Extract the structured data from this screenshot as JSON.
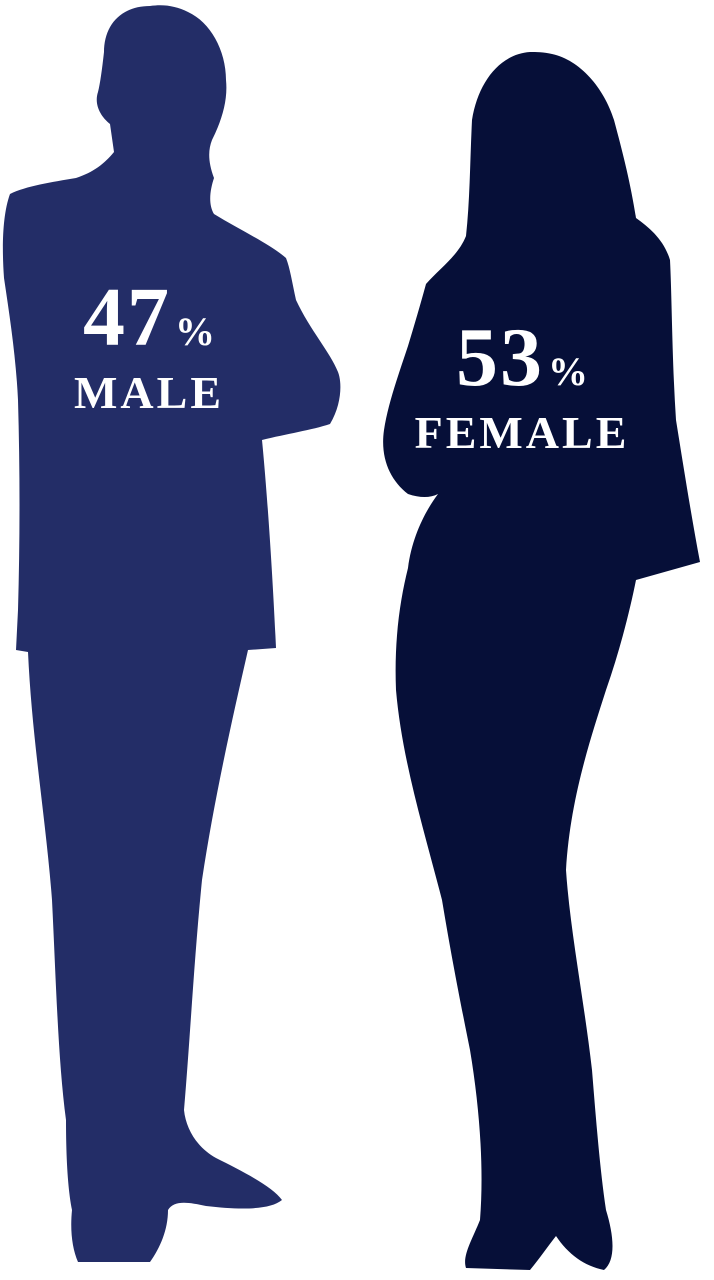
{
  "colors": {
    "background": "#ffffff",
    "male_figure": "#232d67",
    "female_figure": "#060f38",
    "text": "#ffffff"
  },
  "male": {
    "value": "47",
    "percent_sign": "%",
    "label": "MALE",
    "share": 0.47
  },
  "female": {
    "value": "53",
    "percent_sign": "%",
    "label": "FEMALE",
    "share": 0.53
  }
}
